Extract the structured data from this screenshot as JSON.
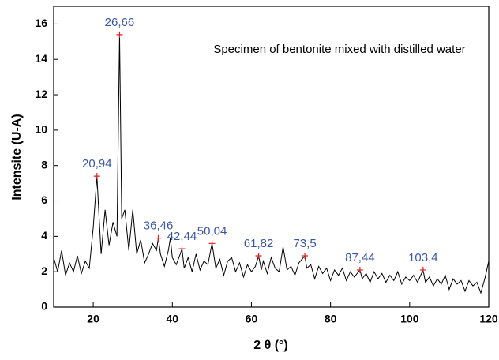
{
  "chart_data": {
    "type": "line",
    "annotation": "Specimen of bentonite mixed with distilled water",
    "x_label": "2 θ (°)",
    "y_label": "Intensite (U-A)",
    "xlim": [
      10,
      120
    ],
    "xticks": [
      20,
      40,
      60,
      80,
      100,
      120
    ],
    "ylim": [
      0,
      17
    ],
    "yticks": [
      0,
      2,
      4,
      6,
      8,
      10,
      12,
      14,
      16
    ],
    "grid": false,
    "series": [
      {
        "color": "#000000",
        "x": [
          10,
          11,
          12,
          13,
          14,
          15,
          16,
          17,
          18,
          19,
          20,
          20.94,
          21.5,
          22,
          23,
          24,
          25,
          26,
          26.66,
          27.2,
          28,
          29,
          30,
          31,
          32,
          33,
          34,
          35,
          36,
          36.46,
          37,
          38,
          39,
          39.5,
          40,
          41,
          42,
          42.44,
          43,
          44,
          45,
          46,
          47,
          48,
          49,
          50.04,
          51,
          52,
          53,
          54,
          55,
          56,
          57,
          58,
          59,
          60,
          61,
          61.82,
          62.5,
          63,
          64,
          65,
          66,
          67,
          68,
          69,
          70,
          71,
          72,
          73.5,
          74,
          75,
          76,
          77,
          78,
          79,
          80,
          81,
          82,
          83,
          84,
          85,
          86,
          87.44,
          88,
          89,
          90,
          91,
          92,
          93,
          94,
          95,
          96,
          97,
          98,
          99,
          100,
          101,
          102,
          103.4,
          104,
          105,
          106,
          107,
          108,
          109,
          110,
          111,
          112,
          113,
          114,
          115,
          116,
          117,
          118,
          119,
          120
        ],
        "values": [
          2.8,
          2.0,
          3.2,
          1.8,
          2.5,
          2.0,
          2.9,
          1.9,
          2.6,
          2.2,
          4.5,
          7.4,
          5.0,
          3.0,
          5.5,
          3.5,
          4.8,
          4.0,
          15.4,
          5.0,
          5.5,
          3.2,
          5.5,
          3.0,
          3.8,
          2.5,
          3.0,
          3.6,
          3.2,
          3.9,
          3.0,
          2.3,
          3.2,
          3.9,
          2.8,
          2.4,
          3.0,
          3.3,
          2.2,
          2.8,
          2.0,
          3.0,
          2.1,
          2.6,
          2.4,
          3.6,
          2.2,
          2.7,
          1.8,
          2.6,
          2.8,
          2.0,
          2.5,
          1.7,
          2.4,
          2.0,
          2.3,
          2.9,
          2.1,
          2.6,
          1.9,
          2.8,
          2.2,
          2.0,
          3.4,
          2.1,
          2.3,
          1.8,
          2.5,
          2.9,
          2.2,
          2.4,
          1.6,
          2.3,
          1.9,
          2.2,
          1.5,
          2.1,
          1.8,
          2.2,
          1.5,
          2.0,
          1.7,
          2.1,
          1.6,
          1.9,
          1.4,
          2.0,
          1.6,
          1.9,
          1.4,
          1.8,
          1.5,
          2.0,
          1.3,
          1.7,
          1.5,
          1.8,
          1.4,
          2.1,
          1.4,
          1.7,
          1.2,
          1.6,
          1.3,
          1.8,
          1.0,
          1.6,
          1.3,
          1.5,
          0.9,
          1.5,
          1.2,
          1.4,
          0.8,
          1.6,
          2.6
        ]
      }
    ],
    "peak_color": "#e02020",
    "peaks": [
      {
        "x": 20.94,
        "y": 7.4,
        "label": "20,94"
      },
      {
        "x": 26.66,
        "y": 15.4,
        "label": "26,66"
      },
      {
        "x": 36.46,
        "y": 3.9,
        "label": "36,46"
      },
      {
        "x": 42.44,
        "y": 3.3,
        "label": "42,44"
      },
      {
        "x": 50.04,
        "y": 3.6,
        "label": "50,04"
      },
      {
        "x": 61.82,
        "y": 2.9,
        "label": "61,82"
      },
      {
        "x": 73.5,
        "y": 2.9,
        "label": "73,5"
      },
      {
        "x": 87.44,
        "y": 2.1,
        "label": "87,44"
      },
      {
        "x": 103.4,
        "y": 2.1,
        "label": "103,4"
      }
    ]
  }
}
